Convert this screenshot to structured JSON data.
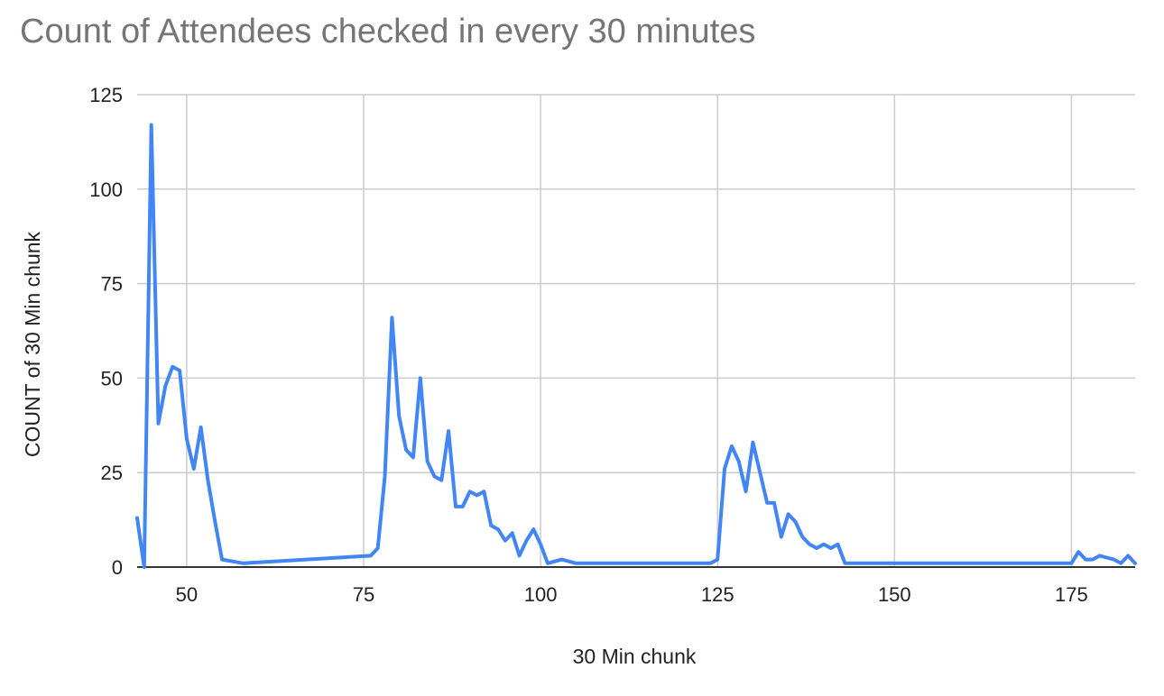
{
  "chart_data": {
    "type": "line",
    "title": "Count of Attendees checked in every 30 minutes",
    "xlabel": "30 Min chunk",
    "ylabel": "COUNT of 30 Min chunk",
    "xlim": [
      43,
      184
    ],
    "ylim": [
      0,
      125
    ],
    "x_ticks": [
      50,
      75,
      100,
      125,
      150,
      175
    ],
    "y_ticks": [
      0,
      25,
      50,
      75,
      100,
      125
    ],
    "grid": true,
    "legend": "none",
    "colors": {
      "line": "#4285f4",
      "grid": "#cccccc",
      "zero_axis": "#333333"
    },
    "series": [
      {
        "x": [
          43,
          44,
          45,
          46,
          47,
          48,
          49,
          50,
          51,
          52,
          53,
          54,
          55,
          58,
          76,
          77,
          78,
          79,
          80,
          81,
          82,
          83,
          84,
          85,
          86,
          87,
          88,
          89,
          90,
          91,
          92,
          93,
          94,
          95,
          96,
          97,
          98,
          99,
          100,
          101,
          103,
          105,
          110,
          115,
          120,
          124,
          125,
          126,
          127,
          128,
          129,
          130,
          131,
          132,
          133,
          134,
          135,
          136,
          137,
          138,
          139,
          140,
          141,
          142,
          143,
          150,
          160,
          170,
          175,
          176,
          177,
          178,
          179,
          180,
          181,
          182,
          183,
          184
        ],
        "y": [
          13,
          0,
          117,
          38,
          48,
          53,
          52,
          34,
          26,
          37,
          23,
          12,
          2,
          1,
          3,
          5,
          24,
          66,
          40,
          31,
          29,
          50,
          28,
          24,
          23,
          36,
          16,
          16,
          20,
          19,
          20,
          11,
          10,
          7,
          9,
          3,
          7,
          10,
          6,
          1,
          2,
          1,
          1,
          1,
          1,
          1,
          2,
          26,
          32,
          28,
          20,
          33,
          25,
          17,
          17,
          8,
          14,
          12,
          8,
          6,
          5,
          6,
          5,
          6,
          1,
          1,
          1,
          1,
          1,
          4,
          2,
          2,
          3,
          2.5,
          2,
          1,
          3,
          1
        ]
      }
    ]
  }
}
